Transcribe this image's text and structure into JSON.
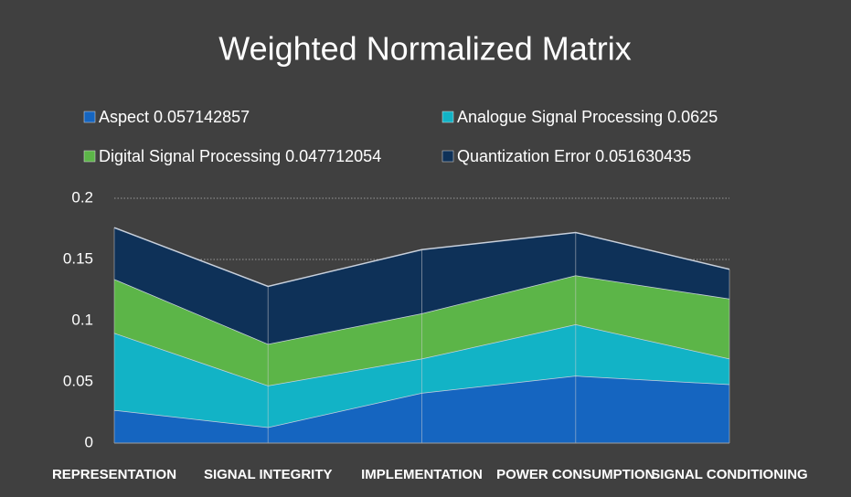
{
  "chart_data": {
    "type": "stacked_area",
    "title": "Weighted Normalized Matrix",
    "categories": [
      "REPRESENTATION",
      "SIGNAL INTEGRITY",
      "IMPLEMENTATION",
      "POWER CONSUMPTION",
      "SIGNAL CONDITIONING"
    ],
    "series": [
      {
        "name": "Aspect 0.057142857",
        "color": "#1565c0",
        "values": [
          0.027,
          0.013,
          0.041,
          0.055,
          0.048
        ]
      },
      {
        "name": "Analogue Signal Processing 0.0625",
        "color": "#12b3c6",
        "values": [
          0.063,
          0.034,
          0.028,
          0.042,
          0.021
        ]
      },
      {
        "name": "Digital Signal Processing 0.047712054",
        "color": "#5cb548",
        "values": [
          0.044,
          0.034,
          0.037,
          0.04,
          0.049
        ]
      },
      {
        "name": "Quantization Error 0.051630435",
        "color": "#0e3158",
        "values": [
          0.042,
          0.047,
          0.052,
          0.035,
          0.024
        ]
      }
    ],
    "ylim": [
      0,
      0.2
    ],
    "yticks": [
      0,
      0.05,
      0.1,
      0.15,
      0.2
    ],
    "grid": true,
    "legend": "top"
  }
}
